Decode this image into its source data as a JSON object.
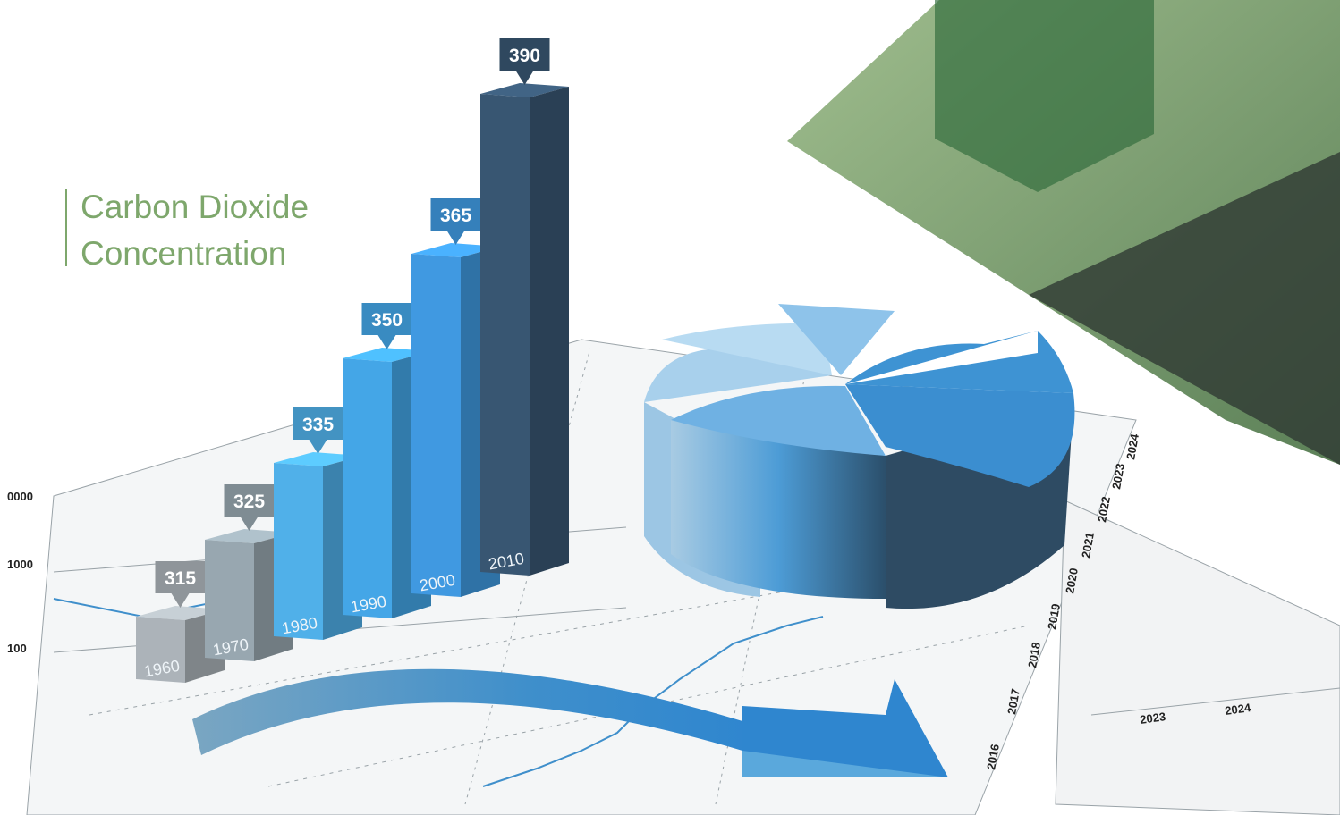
{
  "chart_data": {
    "type": "bar3d",
    "title": [
      "Carbon Dioxide",
      "Concentration"
    ],
    "categories": [
      "1960",
      "1970",
      "1980",
      "1990",
      "2000",
      "2010"
    ],
    "values": [
      315,
      325,
      335,
      350,
      365,
      390
    ],
    "colors": [
      "#9fa6ab",
      "#8d9ba3",
      "#4aa3d8",
      "#3f9ad6",
      "#3b8ed0",
      "#34506a"
    ]
  },
  "background_texts": [
    "0000",
    "1000",
    "100",
    "2016",
    "2017",
    "2018",
    "2019",
    "2020",
    "2021",
    "2022",
    "2023",
    "2024",
    "2023",
    "2024"
  ]
}
